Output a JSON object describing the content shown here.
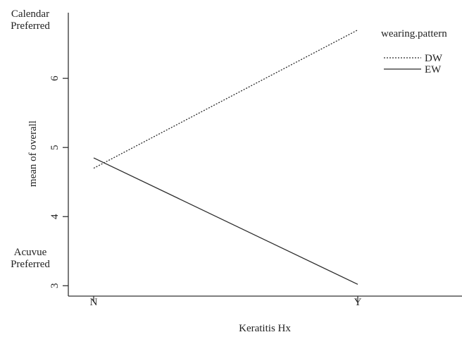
{
  "chart_data": {
    "type": "line",
    "xlabel": "Keratitis Hx",
    "ylabel": "mean of overall",
    "categories": [
      "N",
      "Y"
    ],
    "ylim": [
      2.85,
      6.95
    ],
    "yticks": [
      3,
      4,
      5,
      6
    ],
    "series": [
      {
        "name": "DW",
        "values": [
          4.7,
          6.7
        ],
        "style": "dotted"
      },
      {
        "name": "EW",
        "values": [
          4.85,
          3.02
        ],
        "style": "solid"
      }
    ],
    "legend": {
      "title": "wearing.pattern",
      "placement": "top-right"
    },
    "annotations": {
      "top_left": [
        "Calendar",
        "Preferred"
      ],
      "bottom_left": [
        "Acuvue",
        "Preferred"
      ]
    },
    "grid": false
  }
}
